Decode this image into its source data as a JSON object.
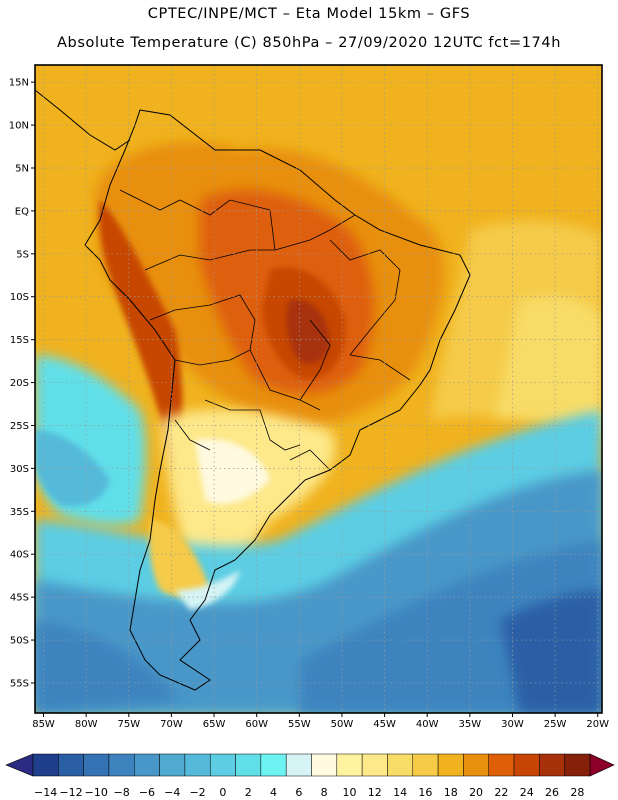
{
  "header": {
    "line1": "CPTEC/INPE/MCT –  Eta Model 15km – GFS",
    "line2": "Absolute Temperature (C) 850hPa – 27/09/2020 12UTC fct=174h"
  },
  "map": {
    "lat_ticks": [
      "15N",
      "10N",
      "5N",
      "EQ",
      "5S",
      "10S",
      "15S",
      "20S",
      "25S",
      "30S",
      "35S",
      "40S",
      "45S",
      "50S",
      "55S"
    ],
    "lon_ticks": [
      "85W",
      "80W",
      "75W",
      "70W",
      "65W",
      "60W",
      "55W",
      "50W",
      "45W",
      "40W",
      "35W",
      "30W",
      "25W",
      "20W"
    ]
  },
  "colorbar": {
    "labels": [
      "-14",
      "-12",
      "-10",
      "-8",
      "-6",
      "-4",
      "-2",
      "0",
      "2",
      "4",
      "6",
      "8",
      "10",
      "12",
      "14",
      "16",
      "18",
      "20",
      "22",
      "24",
      "26",
      "28"
    ],
    "colors": [
      "#1f3f8c",
      "#2a5fa6",
      "#3572b3",
      "#3d84bf",
      "#4897c8",
      "#4fa9d1",
      "#55bad9",
      "#5ccde3",
      "#60dfe9",
      "#6ef3f3",
      "#d6f4f6",
      "#fffae0",
      "#fff3a0",
      "#fde88a",
      "#f8dc68",
      "#f5cb48",
      "#f0b21e",
      "#e88f0e",
      "#de5f08",
      "#c74606",
      "#a73108",
      "#85200a"
    ],
    "under_color": "#2b2b83",
    "over_color": "#8c0028"
  }
}
